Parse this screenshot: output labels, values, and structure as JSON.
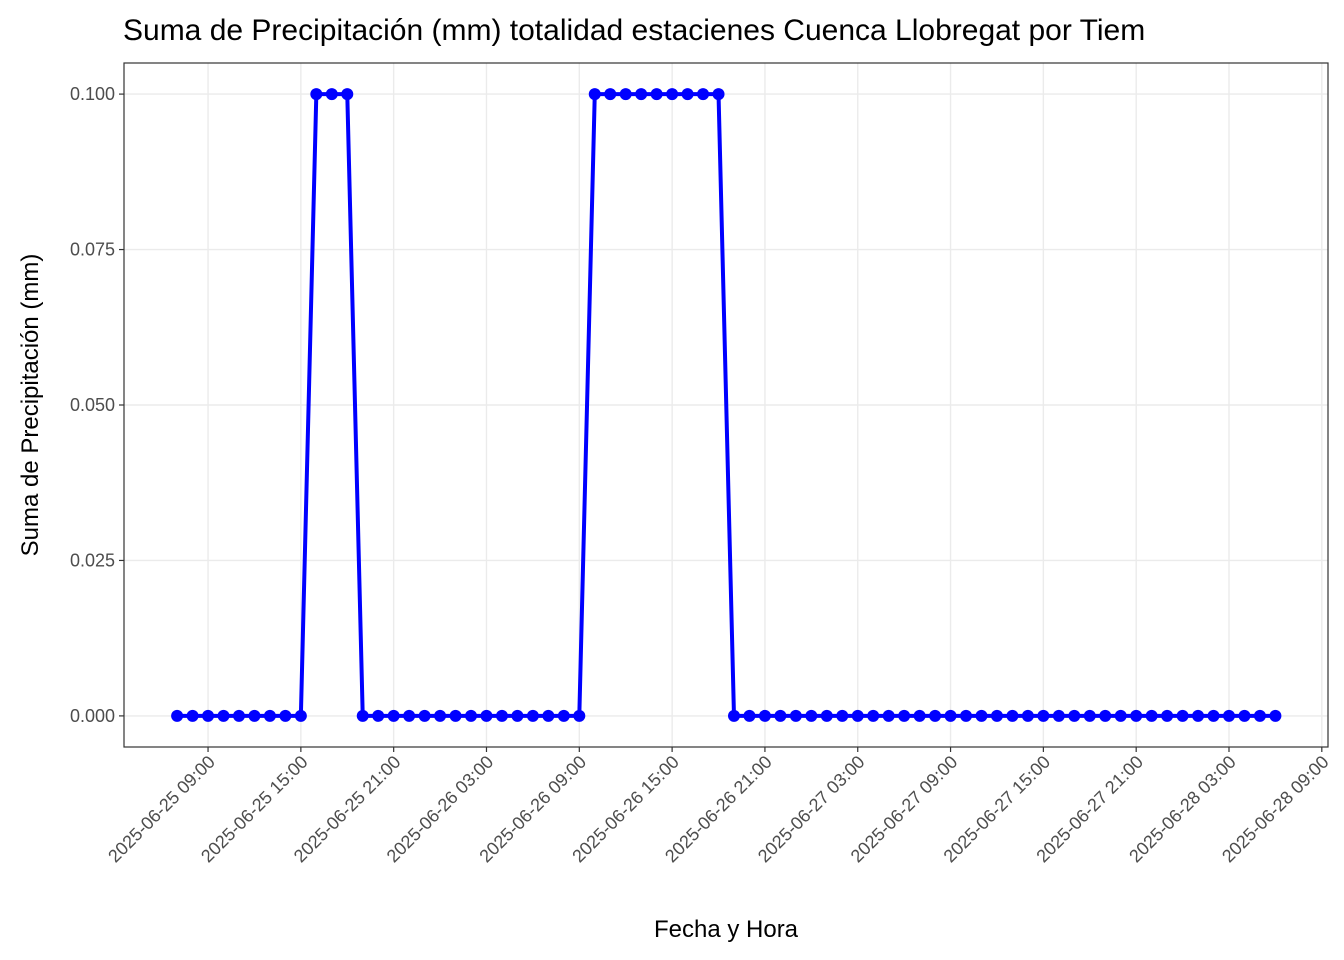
{
  "chart_data": {
    "type": "line",
    "title": "Suma de Precipitación (mm) totalidad estacienes Cuenca Llobregat por Tiem",
    "x_label": "Fecha y Hora",
    "y_label": "Suma de Precipitación (mm)",
    "color": "#0000ff",
    "grid": true,
    "x": [
      "2025-06-25 07:00",
      "2025-06-25 08:00",
      "2025-06-25 09:00",
      "2025-06-25 10:00",
      "2025-06-25 11:00",
      "2025-06-25 12:00",
      "2025-06-25 13:00",
      "2025-06-25 14:00",
      "2025-06-25 15:00",
      "2025-06-25 16:00",
      "2025-06-25 17:00",
      "2025-06-25 18:00",
      "2025-06-25 19:00",
      "2025-06-25 20:00",
      "2025-06-25 21:00",
      "2025-06-25 22:00",
      "2025-06-25 23:00",
      "2025-06-26 00:00",
      "2025-06-26 01:00",
      "2025-06-26 02:00",
      "2025-06-26 03:00",
      "2025-06-26 04:00",
      "2025-06-26 05:00",
      "2025-06-26 06:00",
      "2025-06-26 07:00",
      "2025-06-26 08:00",
      "2025-06-26 09:00",
      "2025-06-26 10:00",
      "2025-06-26 11:00",
      "2025-06-26 12:00",
      "2025-06-26 13:00",
      "2025-06-26 14:00",
      "2025-06-26 15:00",
      "2025-06-26 16:00",
      "2025-06-26 17:00",
      "2025-06-26 18:00",
      "2025-06-26 19:00",
      "2025-06-26 20:00",
      "2025-06-26 21:00",
      "2025-06-26 22:00",
      "2025-06-26 23:00",
      "2025-06-27 00:00",
      "2025-06-27 01:00",
      "2025-06-27 02:00",
      "2025-06-27 03:00",
      "2025-06-27 04:00",
      "2025-06-27 05:00",
      "2025-06-27 06:00",
      "2025-06-27 07:00",
      "2025-06-27 08:00",
      "2025-06-27 09:00",
      "2025-06-27 10:00",
      "2025-06-27 11:00",
      "2025-06-27 12:00",
      "2025-06-27 13:00",
      "2025-06-27 14:00",
      "2025-06-27 15:00",
      "2025-06-27 16:00",
      "2025-06-27 17:00",
      "2025-06-27 18:00",
      "2025-06-27 19:00",
      "2025-06-27 20:00",
      "2025-06-27 21:00",
      "2025-06-27 22:00",
      "2025-06-27 23:00",
      "2025-06-28 00:00",
      "2025-06-28 01:00",
      "2025-06-28 02:00",
      "2025-06-28 03:00",
      "2025-06-28 04:00",
      "2025-06-28 05:00",
      "2025-06-28 06:00"
    ],
    "values": [
      0,
      0,
      0,
      0,
      0,
      0,
      0,
      0,
      0,
      0.1,
      0.1,
      0.1,
      0,
      0,
      0,
      0,
      0,
      0,
      0,
      0,
      0,
      0,
      0,
      0,
      0,
      0,
      0,
      0.1,
      0.1,
      0.1,
      0.1,
      0.1,
      0.1,
      0.1,
      0.1,
      0.1,
      0,
      0,
      0,
      0,
      0,
      0,
      0,
      0,
      0,
      0,
      0,
      0,
      0,
      0,
      0,
      0,
      0,
      0,
      0,
      0,
      0,
      0,
      0,
      0,
      0,
      0,
      0,
      0,
      0,
      0,
      0,
      0,
      0,
      0,
      0,
      0
    ],
    "xlim": [
      "2025-06-25 03:34",
      "2025-06-28 09:24"
    ],
    "xticks": [
      "2025-06-25 09:00",
      "2025-06-25 15:00",
      "2025-06-25 21:00",
      "2025-06-26 03:00",
      "2025-06-26 09:00",
      "2025-06-26 15:00",
      "2025-06-26 21:00",
      "2025-06-27 03:00",
      "2025-06-27 09:00",
      "2025-06-27 15:00",
      "2025-06-27 21:00",
      "2025-06-28 03:00",
      "2025-06-28 09:00"
    ],
    "ylim": [
      -0.005,
      0.105
    ],
    "yticks": [
      {
        "value": 0,
        "label": "0.000"
      },
      {
        "value": 0.025,
        "label": "0.025"
      },
      {
        "value": 0.05,
        "label": "0.050"
      },
      {
        "value": 0.075,
        "label": "0.075"
      },
      {
        "value": 0.1,
        "label": "0.100"
      }
    ]
  }
}
